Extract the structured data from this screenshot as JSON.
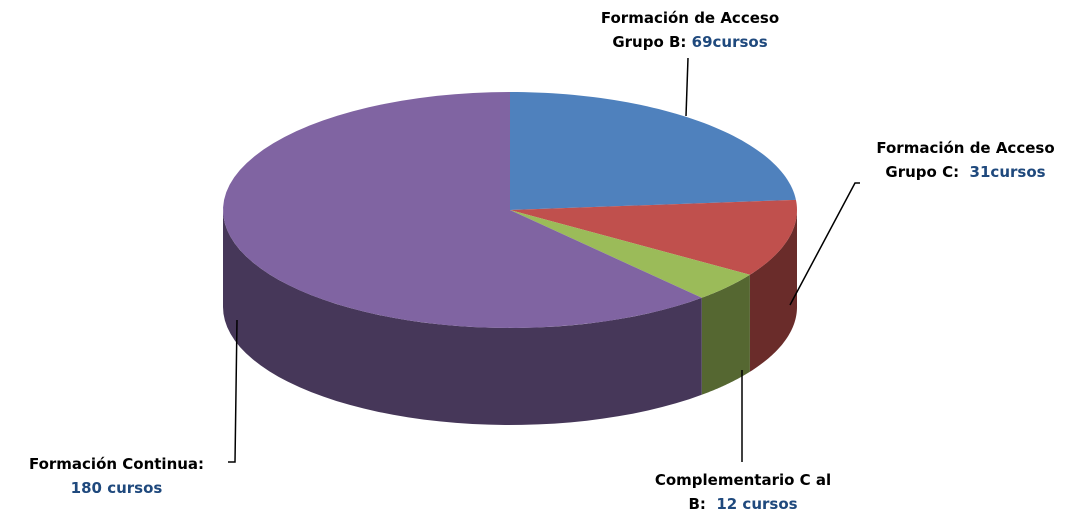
{
  "chart_data": {
    "type": "pie3d",
    "categories": [
      "Formación de Acceso Grupo B:",
      "Formación de Acceso Grupo C:",
      "Complementario C al B:",
      "Formación Continua:"
    ],
    "values": [
      69,
      31,
      12,
      180
    ],
    "value_labels": [
      "69cursos",
      "31cursos",
      "12 cursos",
      "180 cursos"
    ],
    "colors": [
      "#4f81bd",
      "#c0504d",
      "#9bbb59",
      "#8064a2"
    ]
  }
}
